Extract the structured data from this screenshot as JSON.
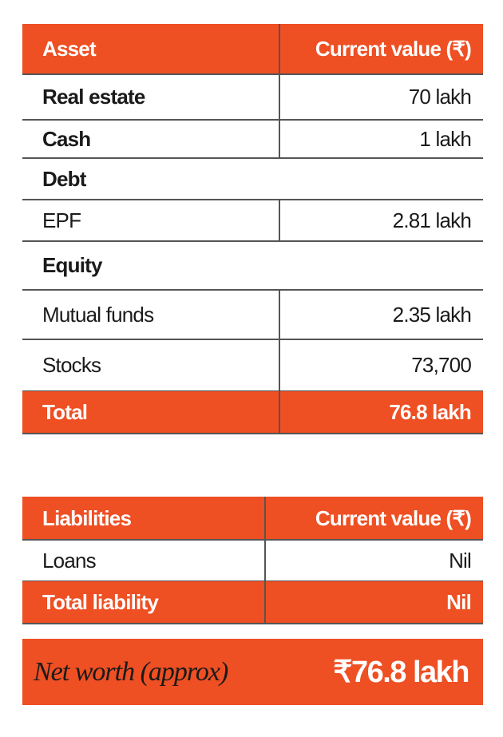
{
  "assets_table": {
    "header": [
      "Asset",
      "Current value (₹)"
    ],
    "rows": [
      [
        "Real estate",
        "70 lakh"
      ],
      [
        "Cash",
        "1 lakh"
      ],
      [
        "Debt"
      ],
      [
        "EPF",
        "2.81 lakh"
      ],
      [
        "Equity"
      ],
      [
        "Mutual funds",
        "2.35 lakh"
      ],
      [
        "Stocks",
        "73,700"
      ]
    ],
    "total": [
      "Total",
      "76.8 lakh"
    ]
  },
  "liabilities_table": {
    "header": [
      "Liabilities",
      "Current value (₹)"
    ],
    "rows": [
      [
        "Loans",
        "Nil"
      ]
    ],
    "total": [
      "Total liability",
      "Nil"
    ]
  },
  "net_worth": {
    "label": "Net worth (approx)",
    "value": "₹76.8 lakh"
  }
}
